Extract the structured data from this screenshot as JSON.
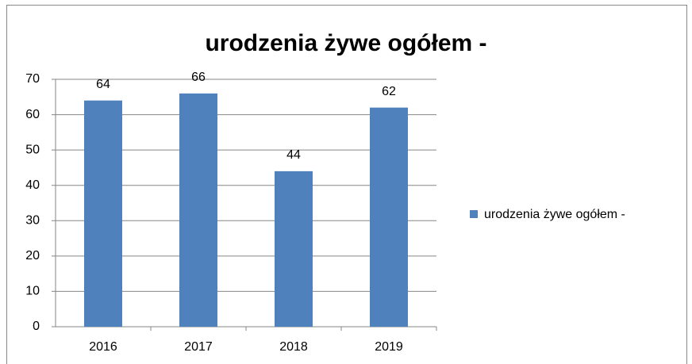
{
  "chart_data": {
    "type": "bar",
    "title": "urodzenia żywe ogółem -",
    "categories": [
      "2016",
      "2017",
      "2018",
      "2019"
    ],
    "series": [
      {
        "name": "urodzenia żywe ogółem -",
        "color": "#4f81bd",
        "values": [
          64,
          66,
          44,
          62
        ]
      }
    ],
    "ylim": [
      0,
      70
    ],
    "yticks": [
      0,
      10,
      20,
      30,
      40,
      50,
      60,
      70
    ],
    "grid": true,
    "legend": "right"
  }
}
